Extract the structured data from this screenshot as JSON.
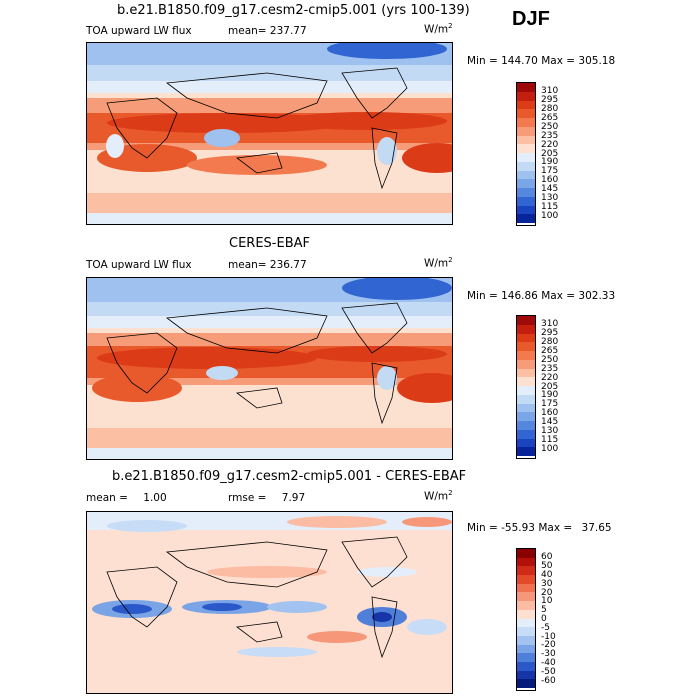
{
  "season": "DJF",
  "panels": [
    {
      "title": "b.e21.B1850.f09_g17.cesm2-cmip5.001 (yrs 100-139)",
      "left_label": "TOA upward LW flux",
      "stat_label": "mean=",
      "stat_value": "237.77",
      "units": "W/m",
      "units_exp": "2",
      "min_label": "Min =",
      "min_value": "144.70",
      "max_label": "Max =",
      "max_value": "305.18",
      "palette": "flux"
    },
    {
      "title": "CERES-EBAF",
      "left_label": "TOA upward LW flux",
      "stat_label": "mean=",
      "stat_value": "236.77",
      "units": "W/m",
      "units_exp": "2",
      "min_label": "Min =",
      "min_value": "146.86",
      "max_label": "Max =",
      "max_value": "302.33",
      "palette": "flux"
    },
    {
      "title": "b.e21.B1850.f09_g17.cesm2-cmip5.001 - CERES-EBAF",
      "left_label": "mean =",
      "left_value": "1.00",
      "stat_label": "rmse =",
      "stat_value": "7.97",
      "units": "W/m",
      "units_exp": "2",
      "min_label": "Min =",
      "min_value": "-55.93",
      "max_label": "Max =",
      "max_value": "37.65",
      "palette": "diff"
    }
  ],
  "chart_data": [
    {
      "type": "heatmap",
      "title": "b.e21.B1850.f09_g17.cesm2-cmip5.001 (yrs 100-139)",
      "variable": "TOA upward LW flux",
      "units": "W/m2",
      "mean": 237.77,
      "min": 144.7,
      "max": 305.18,
      "colorbar_levels": [
        310,
        295,
        280,
        265,
        250,
        235,
        220,
        205,
        190,
        175,
        160,
        145,
        130,
        115,
        100
      ],
      "colorbar_colors": [
        "#9e0a0a",
        "#c41e0e",
        "#dc3b17",
        "#e85a2b",
        "#f27a4e",
        "#f79c78",
        "#fbc0a4",
        "#fde1d0",
        "#e3eefa",
        "#c3daf5",
        "#9ec1ef",
        "#7aa5e6",
        "#5687de",
        "#3165d2",
        "#1a44bf",
        "#08249b"
      ]
    },
    {
      "type": "heatmap",
      "title": "CERES-EBAF",
      "variable": "TOA upward LW flux",
      "units": "W/m2",
      "mean": 236.77,
      "min": 146.86,
      "max": 302.33,
      "colorbar_levels": [
        310,
        295,
        280,
        265,
        250,
        235,
        220,
        205,
        190,
        175,
        160,
        145,
        130,
        115,
        100
      ],
      "colorbar_colors": [
        "#9e0a0a",
        "#c41e0e",
        "#dc3b17",
        "#e85a2b",
        "#f27a4e",
        "#f79c78",
        "#fbc0a4",
        "#fde1d0",
        "#e3eefa",
        "#c3daf5",
        "#9ec1ef",
        "#7aa5e6",
        "#5687de",
        "#3165d2",
        "#1a44bf",
        "#08249b"
      ]
    },
    {
      "type": "heatmap",
      "title": "b.e21.B1850.f09_g17.cesm2-cmip5.001 - CERES-EBAF",
      "units": "W/m2",
      "mean": 1.0,
      "rmse": 7.97,
      "min": -55.93,
      "max": 37.65,
      "colorbar_levels": [
        60,
        50,
        40,
        30,
        20,
        10,
        5,
        0,
        -5,
        -10,
        -20,
        -30,
        -40,
        -50,
        -60
      ],
      "colorbar_colors": [
        "#8a0000",
        "#b3100c",
        "#d02b18",
        "#e24a2a",
        "#ef7150",
        "#f69779",
        "#fbbca3",
        "#fde0d2",
        "#e4eefb",
        "#c7dcf6",
        "#a2c3f0",
        "#7aa4e6",
        "#4f7fd9",
        "#2a58c8",
        "#1535a8",
        "#061a7a"
      ]
    }
  ]
}
